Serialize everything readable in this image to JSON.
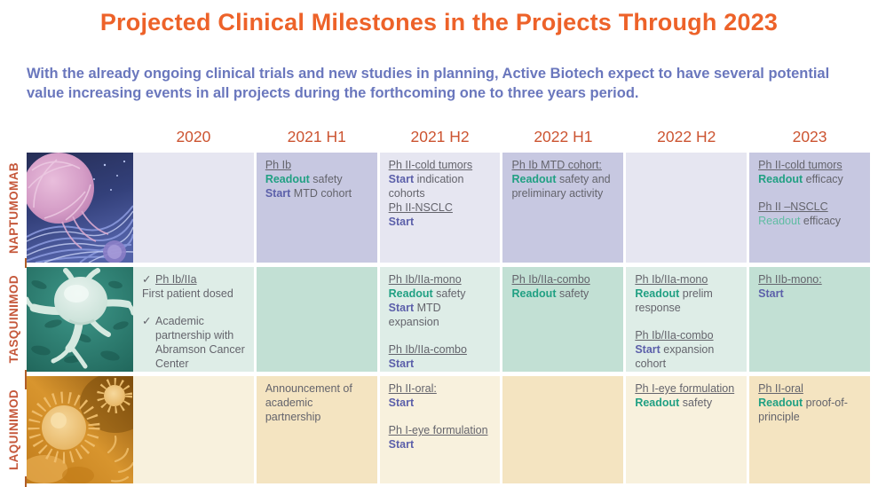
{
  "title": "Projected Clinical Milestones in the Projects Through 2023",
  "subtitle": "With the already ongoing clinical trials and new studies in planning, Active Biotech expect to have several potential value increasing events in all projects during the forthcoming one to three years period.",
  "columns": [
    "2020",
    "2021 H1",
    "2021 H2",
    "2022 H1",
    "2022 H2",
    "2023"
  ],
  "colors": {
    "title_orange": "#ED6229",
    "header_orange": "#CC5431",
    "label_orange": "#C5573A",
    "subtitle_blue": "#6A77BD",
    "body_gray": "#64646C",
    "readout_teal": "#21A083",
    "readout_teal_light": "#5FBCA2",
    "start_purple": "#5C60AA"
  },
  "check_glyph": "✓",
  "projects": [
    {
      "name": "NAPTUMOMAB",
      "image": "naptumomab-micrograph",
      "image_desc": "pink tumor cell on blue fibrous tissue",
      "palette": {
        "light": "#E6E6F1",
        "dark": "#C7C8E1"
      },
      "cells": [
        {
          "col": "2020",
          "blocks": []
        },
        {
          "col": "2021 H1",
          "blocks": [
            {
              "lines": [
                [
                  {
                    "t": "Ph Ib",
                    "s": "u"
                  }
                ],
                [
                  {
                    "t": "Readout",
                    "s": "r"
                  },
                  {
                    "t": " safety",
                    "s": "p"
                  }
                ],
                [
                  {
                    "t": "Start",
                    "s": "s"
                  },
                  {
                    "t": " MTD cohort",
                    "s": "p"
                  }
                ]
              ]
            }
          ]
        },
        {
          "col": "2021 H2",
          "blocks": [
            {
              "lines": [
                [
                  {
                    "t": "Ph II-cold tumors",
                    "s": "u"
                  }
                ],
                [
                  {
                    "t": "Start",
                    "s": "s"
                  },
                  {
                    "t": " indication cohorts",
                    "s": "p"
                  }
                ],
                [
                  {
                    "t": "Ph II-NSCLC",
                    "s": "u"
                  }
                ],
                [
                  {
                    "t": "Start",
                    "s": "s"
                  }
                ]
              ]
            }
          ]
        },
        {
          "col": "2022 H1",
          "blocks": [
            {
              "lines": [
                [
                  {
                    "t": "Ph Ib MTD cohort:",
                    "s": "u"
                  }
                ],
                [
                  {
                    "t": "Readout",
                    "s": "r"
                  },
                  {
                    "t": " safety and preliminary activity",
                    "s": "p"
                  }
                ]
              ]
            }
          ]
        },
        {
          "col": "2022 H2",
          "blocks": []
        },
        {
          "col": "2023",
          "blocks": [
            {
              "lines": [
                [
                  {
                    "t": "Ph II-cold tumors",
                    "s": "u"
                  }
                ],
                [
                  {
                    "t": "Readout",
                    "s": "r"
                  },
                  {
                    "t": " efficacy",
                    "s": "p"
                  }
                ]
              ]
            },
            {
              "space": true,
              "lines": [
                [
                  {
                    "t": "Ph II –NSCLC",
                    "s": "u"
                  }
                ],
                [
                  {
                    "t": "Readout",
                    "s": "rl"
                  },
                  {
                    "t": " efficacy",
                    "s": "p"
                  }
                ]
              ]
            }
          ]
        }
      ]
    },
    {
      "name": "TASQUINIMOD",
      "image": "tasquinimod-micrograph",
      "image_desc": "pale dendritic cell on teal tissue",
      "palette": {
        "light": "#DEEDE7",
        "dark": "#C2E0D4"
      },
      "cells": [
        {
          "col": "2020",
          "blocks": [
            {
              "check": true,
              "lines": [
                [
                  {
                    "t": "Ph Ib/IIa",
                    "s": "u"
                  }
                ]
              ]
            },
            {
              "lines": [
                [
                  {
                    "t": "First patient dosed",
                    "s": "p"
                  }
                ]
              ]
            },
            {
              "space": true,
              "check": true,
              "lines": [
                [
                  {
                    "t": "Academic partnership with Abramson Cancer Center established",
                    "s": "p"
                  }
                ]
              ]
            }
          ]
        },
        {
          "col": "2021 H1",
          "blocks": []
        },
        {
          "col": "2021 H2",
          "blocks": [
            {
              "lines": [
                [
                  {
                    "t": "Ph Ib/IIa-mono",
                    "s": "u"
                  }
                ],
                [
                  {
                    "t": "Readout",
                    "s": "r"
                  },
                  {
                    "t": " safety",
                    "s": "p"
                  }
                ],
                [
                  {
                    "t": "Start",
                    "s": "s"
                  },
                  {
                    "t": " MTD expansion",
                    "s": "p"
                  }
                ]
              ]
            },
            {
              "space": true,
              "lines": [
                [
                  {
                    "t": "Ph Ib/IIa-combo",
                    "s": "u"
                  }
                ],
                [
                  {
                    "t": "Start",
                    "s": "s"
                  }
                ]
              ]
            }
          ]
        },
        {
          "col": "2022 H1",
          "blocks": [
            {
              "lines": [
                [
                  {
                    "t": "Ph Ib/IIa-combo",
                    "s": "u"
                  }
                ],
                [
                  {
                    "t": "Readout",
                    "s": "r"
                  },
                  {
                    "t": " safety",
                    "s": "p"
                  }
                ]
              ]
            }
          ]
        },
        {
          "col": "2022 H2",
          "blocks": [
            {
              "lines": [
                [
                  {
                    "t": "Ph Ib/IIa-mono",
                    "s": "u"
                  }
                ],
                [
                  {
                    "t": "Readout",
                    "s": "r"
                  },
                  {
                    "t": " prelim response",
                    "s": "p"
                  }
                ]
              ]
            },
            {
              "space": true,
              "lines": [
                [
                  {
                    "t": "Ph Ib/IIa-combo",
                    "s": "u"
                  }
                ],
                [
                  {
                    "t": "Start",
                    "s": "s"
                  },
                  {
                    "t": " expansion cohort",
                    "s": "p"
                  }
                ]
              ]
            }
          ]
        },
        {
          "col": "2023",
          "blocks": [
            {
              "lines": [
                [
                  {
                    "t": "Ph IIb-mono:",
                    "s": "u"
                  }
                ],
                [
                  {
                    "t": "Start",
                    "s": "s"
                  }
                ]
              ]
            }
          ]
        }
      ]
    },
    {
      "name": "LAQUINIMOD",
      "image": "laquinimod-micrograph",
      "image_desc": "spiky amber cells on orange background",
      "palette": {
        "light": "#F8F1DD",
        "dark": "#F4E4C1"
      },
      "cells": [
        {
          "col": "2020",
          "blocks": []
        },
        {
          "col": "2021 H1",
          "blocks": [
            {
              "lines": [
                [
                  {
                    "t": "Announcement of academic partnership",
                    "s": "p"
                  }
                ]
              ]
            }
          ]
        },
        {
          "col": "2021 H2",
          "blocks": [
            {
              "lines": [
                [
                  {
                    "t": "Ph II-oral:",
                    "s": "u"
                  }
                ],
                [
                  {
                    "t": "Start",
                    "s": "s"
                  }
                ]
              ]
            },
            {
              "space": true,
              "lines": [
                [
                  {
                    "t": "Ph I-eye formulation",
                    "s": "u"
                  }
                ],
                [
                  {
                    "t": "Start",
                    "s": "s"
                  }
                ]
              ]
            }
          ]
        },
        {
          "col": "2022 H1",
          "blocks": []
        },
        {
          "col": "2022 H2",
          "blocks": [
            {
              "lines": [
                [
                  {
                    "t": "Ph I-eye formulation",
                    "s": "u"
                  }
                ],
                [
                  {
                    "t": "Readout",
                    "s": "r"
                  },
                  {
                    "t": " safety",
                    "s": "p"
                  }
                ]
              ]
            }
          ]
        },
        {
          "col": "2023",
          "blocks": [
            {
              "lines": [
                [
                  {
                    "t": "Ph II-oral",
                    "s": "u"
                  }
                ],
                [
                  {
                    "t": "Readout",
                    "s": "r"
                  },
                  {
                    "t": " proof-of-principle",
                    "s": "p"
                  }
                ]
              ]
            }
          ]
        }
      ]
    }
  ]
}
